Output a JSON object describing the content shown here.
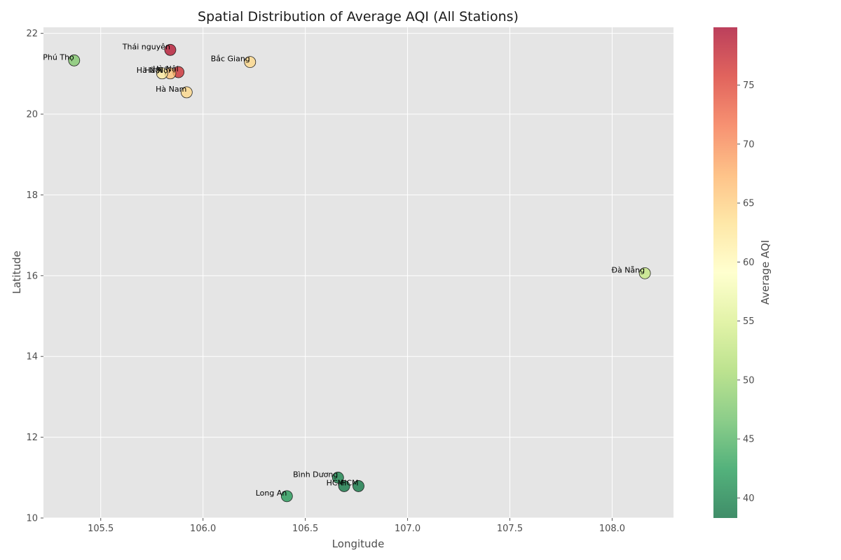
{
  "chart_data": {
    "type": "scatter",
    "title": "Spatial Distribution of Average AQI (All Stations)",
    "xlabel": "Longitude",
    "ylabel": "Latitude",
    "xlim": [
      105.22,
      108.3
    ],
    "ylim": [
      10.0,
      22.15
    ],
    "xticks": [
      "105.5",
      "106.0",
      "106.5",
      "107.0",
      "107.5",
      "108.0"
    ],
    "yticks": [
      "10",
      "12",
      "14",
      "16",
      "18",
      "20",
      "22"
    ],
    "grid": true,
    "colorbar": {
      "label": "Average AQI",
      "range": [
        38.3,
        79.9
      ],
      "ticks": [
        "40",
        "45",
        "50",
        "55",
        "60",
        "65",
        "70",
        "75"
      ],
      "colormap": [
        "#006837",
        "#1a9850",
        "#66bd63",
        "#a6d96a",
        "#d9ef8b",
        "#ffffbf",
        "#fee08b",
        "#fdae61",
        "#f46d43",
        "#d73027",
        "#a50026"
      ]
    },
    "points": [
      {
        "label": "Phú Thọ",
        "lon": 105.37,
        "lat": 21.33,
        "aqi": 48
      },
      {
        "label": "Thái nguyên",
        "lon": 105.84,
        "lat": 21.59,
        "aqi": 79
      },
      {
        "label": "Hà Nội",
        "lon": 105.88,
        "lat": 21.04,
        "aqi": 77
      },
      {
        "label": "Hà Nội",
        "lon": 105.84,
        "lat": 21.01,
        "aqi": 66
      },
      {
        "label": "Hà Nội",
        "lon": 105.8,
        "lat": 21.01,
        "aqi": 62
      },
      {
        "label": "Hà Nam",
        "lon": 105.92,
        "lat": 20.54,
        "aqi": 64
      },
      {
        "label": "Bắc Giang",
        "lon": 106.23,
        "lat": 21.29,
        "aqi": 64
      },
      {
        "label": "Đà Nẵng",
        "lon": 108.16,
        "lat": 16.06,
        "aqi": 53
      },
      {
        "label": "Bình Dương",
        "lon": 106.66,
        "lat": 11.0,
        "aqi": 40
      },
      {
        "label": "HCM",
        "lon": 106.69,
        "lat": 10.79,
        "aqi": 39
      },
      {
        "label": "HCM",
        "lon": 106.76,
        "lat": 10.79,
        "aqi": 39
      },
      {
        "label": "Long An",
        "lon": 106.41,
        "lat": 10.54,
        "aqi": 42
      }
    ]
  }
}
